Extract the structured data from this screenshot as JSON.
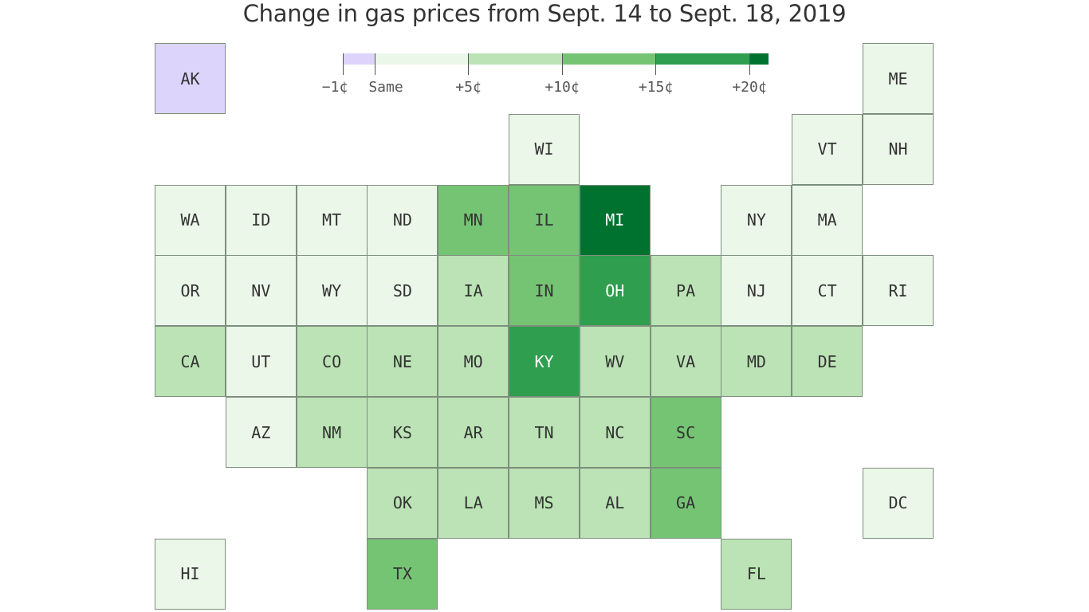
{
  "title": "Change in gas prices from Sept. 14 to Sept. 18, 2019",
  "colors": {
    "lower": "#ddd4fb",
    "same": "#ebf7e8",
    "plus5": "#bbe3b5",
    "plus10": "#75c474",
    "plus15": "#2f9e4e",
    "plus20": "#00722f"
  },
  "legend": {
    "segments": [
      {
        "bin": "lower",
        "from": -1,
        "to": 0
      },
      {
        "bin": "same",
        "from": 0,
        "to": 5
      },
      {
        "bin": "plus5",
        "from": 5,
        "to": 10
      },
      {
        "bin": "plus10",
        "from": 10,
        "to": 15
      },
      {
        "bin": "plus15",
        "from": 15,
        "to": 20
      },
      {
        "bin": "plus20",
        "from": 20,
        "to": 21
      }
    ],
    "ticks": [
      {
        "value": -1,
        "label": "−1¢"
      },
      {
        "value": 0,
        "label": "Same"
      },
      {
        "value": 5,
        "label": "+5¢"
      },
      {
        "value": 10,
        "label": "+10¢"
      },
      {
        "value": 15,
        "label": "+15¢"
      },
      {
        "value": 20,
        "label": "+20¢"
      }
    ]
  },
  "states": [
    {
      "abbr": "AK",
      "col": 0,
      "row": 0,
      "bin": "lower"
    },
    {
      "abbr": "ME",
      "col": 10,
      "row": 0,
      "bin": "same"
    },
    {
      "abbr": "WI",
      "col": 5,
      "row": 1,
      "bin": "same"
    },
    {
      "abbr": "VT",
      "col": 9,
      "row": 1,
      "bin": "same"
    },
    {
      "abbr": "NH",
      "col": 10,
      "row": 1,
      "bin": "same"
    },
    {
      "abbr": "WA",
      "col": 0,
      "row": 2,
      "bin": "same"
    },
    {
      "abbr": "ID",
      "col": 1,
      "row": 2,
      "bin": "same"
    },
    {
      "abbr": "MT",
      "col": 2,
      "row": 2,
      "bin": "same"
    },
    {
      "abbr": "ND",
      "col": 3,
      "row": 2,
      "bin": "same"
    },
    {
      "abbr": "MN",
      "col": 4,
      "row": 2,
      "bin": "plus10"
    },
    {
      "abbr": "IL",
      "col": 5,
      "row": 2,
      "bin": "plus10"
    },
    {
      "abbr": "MI",
      "col": 6,
      "row": 2,
      "bin": "plus20"
    },
    {
      "abbr": "NY",
      "col": 8,
      "row": 2,
      "bin": "same"
    },
    {
      "abbr": "MA",
      "col": 9,
      "row": 2,
      "bin": "same"
    },
    {
      "abbr": "OR",
      "col": 0,
      "row": 3,
      "bin": "same"
    },
    {
      "abbr": "NV",
      "col": 1,
      "row": 3,
      "bin": "same"
    },
    {
      "abbr": "WY",
      "col": 2,
      "row": 3,
      "bin": "same"
    },
    {
      "abbr": "SD",
      "col": 3,
      "row": 3,
      "bin": "same"
    },
    {
      "abbr": "IA",
      "col": 4,
      "row": 3,
      "bin": "plus5"
    },
    {
      "abbr": "IN",
      "col": 5,
      "row": 3,
      "bin": "plus10"
    },
    {
      "abbr": "OH",
      "col": 6,
      "row": 3,
      "bin": "plus15"
    },
    {
      "abbr": "PA",
      "col": 7,
      "row": 3,
      "bin": "plus5"
    },
    {
      "abbr": "NJ",
      "col": 8,
      "row": 3,
      "bin": "same"
    },
    {
      "abbr": "CT",
      "col": 9,
      "row": 3,
      "bin": "same"
    },
    {
      "abbr": "RI",
      "col": 10,
      "row": 3,
      "bin": "same"
    },
    {
      "abbr": "CA",
      "col": 0,
      "row": 4,
      "bin": "plus5"
    },
    {
      "abbr": "UT",
      "col": 1,
      "row": 4,
      "bin": "same"
    },
    {
      "abbr": "CO",
      "col": 2,
      "row": 4,
      "bin": "plus5"
    },
    {
      "abbr": "NE",
      "col": 3,
      "row": 4,
      "bin": "plus5"
    },
    {
      "abbr": "MO",
      "col": 4,
      "row": 4,
      "bin": "plus5"
    },
    {
      "abbr": "KY",
      "col": 5,
      "row": 4,
      "bin": "plus15"
    },
    {
      "abbr": "WV",
      "col": 6,
      "row": 4,
      "bin": "plus5"
    },
    {
      "abbr": "VA",
      "col": 7,
      "row": 4,
      "bin": "plus5"
    },
    {
      "abbr": "MD",
      "col": 8,
      "row": 4,
      "bin": "plus5"
    },
    {
      "abbr": "DE",
      "col": 9,
      "row": 4,
      "bin": "plus5"
    },
    {
      "abbr": "AZ",
      "col": 1,
      "row": 5,
      "bin": "same"
    },
    {
      "abbr": "NM",
      "col": 2,
      "row": 5,
      "bin": "plus5"
    },
    {
      "abbr": "KS",
      "col": 3,
      "row": 5,
      "bin": "plus5"
    },
    {
      "abbr": "AR",
      "col": 4,
      "row": 5,
      "bin": "plus5"
    },
    {
      "abbr": "TN",
      "col": 5,
      "row": 5,
      "bin": "plus5"
    },
    {
      "abbr": "NC",
      "col": 6,
      "row": 5,
      "bin": "plus5"
    },
    {
      "abbr": "SC",
      "col": 7,
      "row": 5,
      "bin": "plus10"
    },
    {
      "abbr": "OK",
      "col": 3,
      "row": 6,
      "bin": "plus5"
    },
    {
      "abbr": "LA",
      "col": 4,
      "row": 6,
      "bin": "plus5"
    },
    {
      "abbr": "MS",
      "col": 5,
      "row": 6,
      "bin": "plus5"
    },
    {
      "abbr": "AL",
      "col": 6,
      "row": 6,
      "bin": "plus5"
    },
    {
      "abbr": "GA",
      "col": 7,
      "row": 6,
      "bin": "plus10"
    },
    {
      "abbr": "DC",
      "col": 10,
      "row": 6,
      "bin": "same"
    },
    {
      "abbr": "HI",
      "col": 0,
      "row": 7,
      "bin": "same"
    },
    {
      "abbr": "TX",
      "col": 3,
      "row": 7,
      "bin": "plus10"
    },
    {
      "abbr": "FL",
      "col": 8,
      "row": 7,
      "bin": "plus5"
    }
  ]
}
